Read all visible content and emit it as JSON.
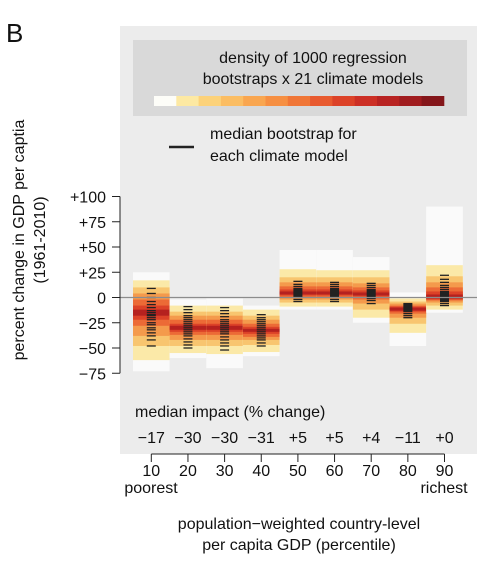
{
  "panel_label": "B",
  "legend": {
    "density_title_line1": "density of 1000 regression",
    "density_title_line2": "bootstraps x 21 climate models",
    "median_line1": "median bootstrap for",
    "median_line2": "each climate model",
    "density_colors": [
      "#fdfdf8",
      "#fde9a3",
      "#fcd27a",
      "#fbbd63",
      "#f9a650",
      "#f68f42",
      "#f07637",
      "#e85a2f",
      "#dc4228",
      "#cc2f25",
      "#b82322",
      "#a01c1f",
      "#84161a"
    ]
  },
  "ylabel_line1": "percent change in GDP per captia",
  "ylabel_line2": "(1961-2010)",
  "xlabel_line1": "population−weighted country-level",
  "xlabel_line2": "per capita GDP (percentile)",
  "median_impact_title": "median impact (% change)",
  "x_end_labels": {
    "left": "poorest",
    "right": "richest"
  },
  "colors": {
    "panel_bg": "#ececec",
    "legend_bg": "#d9d9d9",
    "zero_line": "#8c8c8c",
    "median_tick": "#222222"
  },
  "chart_data": {
    "type": "heatmap",
    "description_of_marks": "stacked density bands per percentile bin",
    "categories": [
      "10",
      "20",
      "30",
      "40",
      "50",
      "60",
      "70",
      "80",
      "90"
    ],
    "yticks": [
      {
        "value": 100,
        "label": "+100"
      },
      {
        "value": 75,
        "label": "+75"
      },
      {
        "value": 50,
        "label": "+50"
      },
      {
        "value": 25,
        "label": "+25"
      },
      {
        "value": 0,
        "label": "0"
      },
      {
        "value": -25,
        "label": "−25"
      },
      {
        "value": -50,
        "label": "−50"
      },
      {
        "value": -75,
        "label": "−75"
      }
    ],
    "ylim": [
      -110,
      148
    ],
    "median_impact": [
      "−17",
      "−30",
      "−30",
      "−31",
      "+5",
      "+5",
      "+4",
      "−11",
      "+0"
    ],
    "bins": [
      {
        "x": "10",
        "median": -17,
        "bands": [
          [
            -73,
            25
          ],
          [
            -62,
            17
          ],
          [
            -48,
            10
          ],
          [
            -38,
            4
          ],
          [
            -28,
            -2
          ],
          [
            -22,
            -8
          ],
          [
            -18,
            -12
          ]
        ],
        "model_medians": [
          -48,
          -42,
          -38,
          -35,
          -32,
          -30,
          -27,
          -25,
          -22,
          -20,
          -18,
          -17,
          -15,
          -13,
          -10,
          -7,
          -4,
          0,
          4,
          9
        ]
      },
      {
        "x": "20",
        "median": -30,
        "bands": [
          [
            -60,
            -2
          ],
          [
            -55,
            -8
          ],
          [
            -48,
            -14
          ],
          [
            -42,
            -18
          ],
          [
            -37,
            -22
          ],
          [
            -34,
            -26
          ],
          [
            -32,
            -28
          ]
        ],
        "model_medians": [
          -50,
          -47,
          -44,
          -41,
          -38,
          -36,
          -34,
          -32,
          -30,
          -28,
          -26,
          -24,
          -22,
          -20,
          -18,
          -15,
          -12,
          -9
        ]
      },
      {
        "x": "30",
        "median": -30,
        "bands": [
          [
            -70,
            -1
          ],
          [
            -56,
            -8
          ],
          [
            -48,
            -14
          ],
          [
            -42,
            -18
          ],
          [
            -37,
            -22
          ],
          [
            -34,
            -26
          ],
          [
            -32,
            -28
          ]
        ],
        "model_medians": [
          -52,
          -48,
          -45,
          -42,
          -39,
          -36,
          -34,
          -32,
          -30,
          -28,
          -26,
          -24,
          -22,
          -19,
          -16,
          -13,
          -10
        ]
      },
      {
        "x": "40",
        "median": -31,
        "bands": [
          [
            -58,
            -8
          ],
          [
            -54,
            -12
          ],
          [
            -47,
            -18
          ],
          [
            -42,
            -22
          ],
          [
            -39,
            -26
          ],
          [
            -36,
            -29
          ],
          [
            -34,
            -31
          ]
        ],
        "model_medians": [
          -48,
          -45,
          -42,
          -40,
          -38,
          -36,
          -34,
          -32,
          -30,
          -28,
          -26,
          -24,
          -22,
          -20,
          -17
        ]
      },
      {
        "x": "50",
        "median": 5,
        "bands": [
          [
            -12,
            47
          ],
          [
            -9,
            28
          ],
          [
            -5,
            20
          ],
          [
            -2,
            15
          ],
          [
            0,
            11
          ],
          [
            2,
            8
          ],
          [
            3,
            6
          ]
        ],
        "model_medians": [
          -4,
          -2,
          0,
          1,
          2,
          3,
          4,
          5,
          6,
          7,
          8,
          9,
          11,
          13,
          16
        ]
      },
      {
        "x": "60",
        "median": 5,
        "bands": [
          [
            -12,
            47
          ],
          [
            -9,
            27
          ],
          [
            -5,
            20
          ],
          [
            -2,
            15
          ],
          [
            0,
            11
          ],
          [
            2,
            8
          ],
          [
            3,
            6
          ]
        ],
        "model_medians": [
          -4,
          -2,
          0,
          1,
          2,
          3,
          4,
          5,
          6,
          7,
          8,
          9,
          11,
          13,
          15
        ]
      },
      {
        "x": "70",
        "median": 4,
        "bands": [
          [
            -25,
            40
          ],
          [
            -20,
            27
          ],
          [
            -12,
            20
          ],
          [
            -6,
            14
          ],
          [
            -2,
            10
          ],
          [
            1,
            7
          ],
          [
            2,
            5
          ]
        ],
        "model_medians": [
          -6,
          -3,
          -1,
          1,
          2,
          3,
          4,
          5,
          6,
          7,
          8,
          10,
          12,
          14
        ]
      },
      {
        "x": "80",
        "median": -11,
        "bands": [
          [
            -48,
            5
          ],
          [
            -35,
            -1
          ],
          [
            -26,
            -4
          ],
          [
            -20,
            -6
          ],
          [
            -16,
            -8
          ],
          [
            -14,
            -9
          ],
          [
            -13,
            -10
          ]
        ],
        "model_medians": [
          -20,
          -18,
          -16,
          -14,
          -13,
          -12,
          -11,
          -10,
          -9,
          -8,
          -7,
          -6
        ]
      },
      {
        "x": "90",
        "median": 0,
        "bands": [
          [
            -15,
            90
          ],
          [
            -12,
            32
          ],
          [
            -8,
            21
          ],
          [
            -5,
            15
          ],
          [
            -3,
            10
          ],
          [
            -2,
            6
          ],
          [
            -1,
            3
          ]
        ],
        "model_medians": [
          -8,
          -6,
          -4,
          -3,
          -2,
          -1,
          0,
          1,
          2,
          3,
          4,
          5,
          6,
          8,
          10,
          12,
          15,
          18,
          22
        ]
      }
    ]
  }
}
